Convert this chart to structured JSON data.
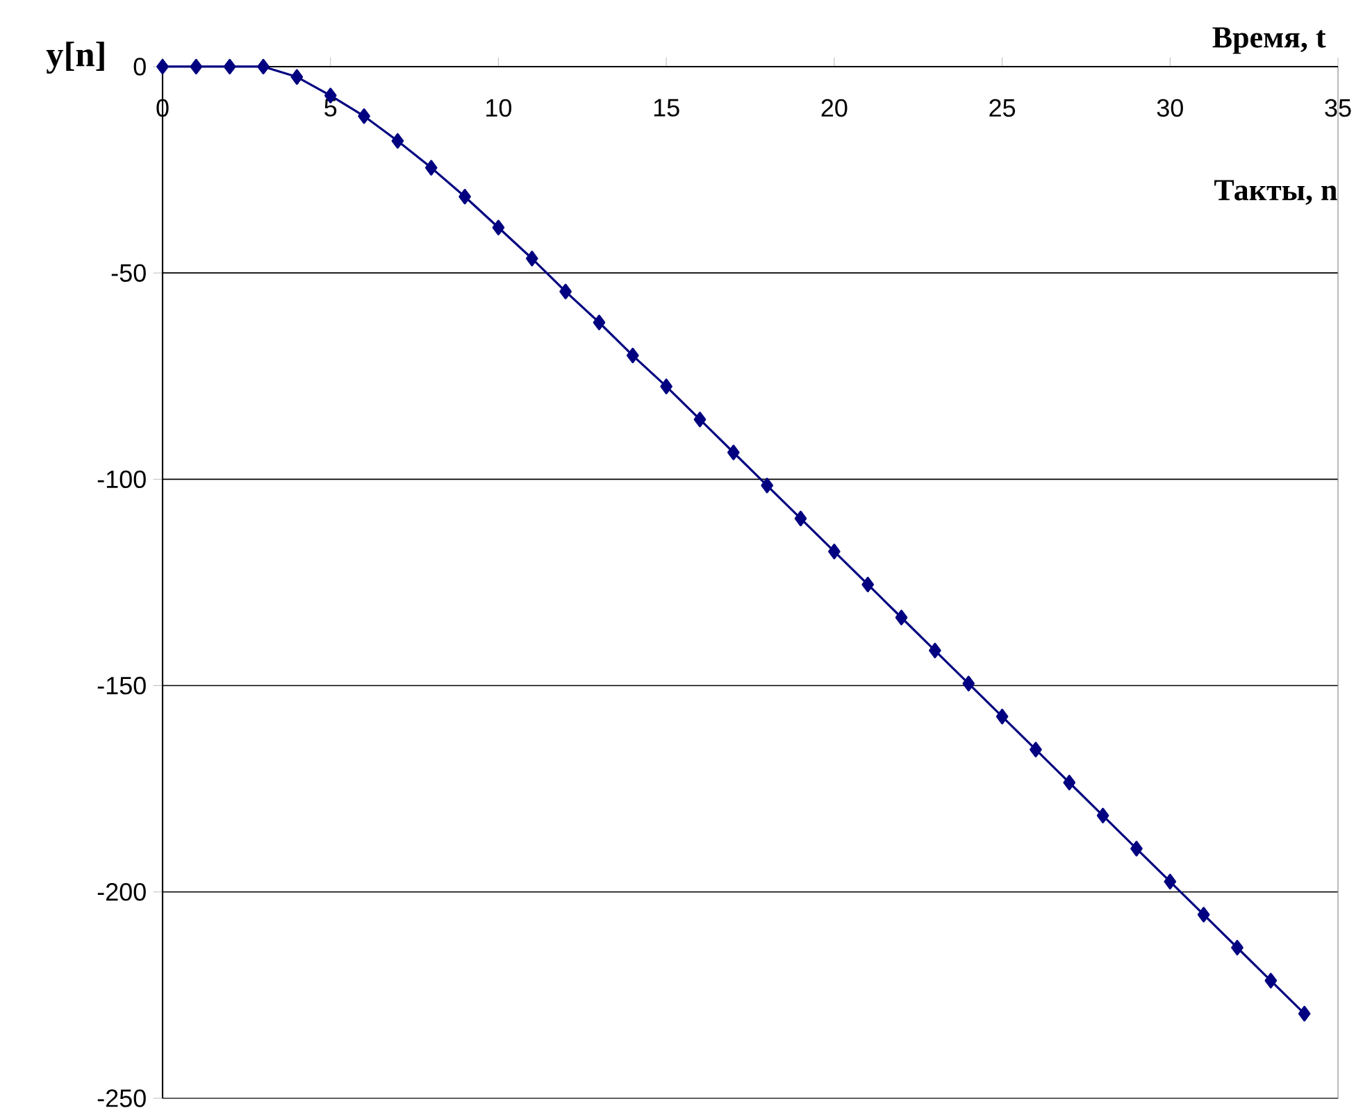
{
  "chart_data": {
    "type": "line",
    "xlabel": "Такты, n",
    "ylabel": "y[n]",
    "annotations": [
      "Время, t"
    ],
    "x": [
      0,
      1,
      2,
      3,
      4,
      5,
      6,
      7,
      8,
      9,
      10,
      11,
      12,
      13,
      14,
      15,
      16,
      17,
      18,
      19,
      20,
      21,
      22,
      23,
      24,
      25,
      26,
      27,
      28,
      29,
      30,
      31,
      32,
      33,
      34
    ],
    "series": [
      {
        "color": "#000080",
        "values": [
          0,
          0,
          0,
          0,
          -2.5,
          -7,
          -12,
          -18,
          -24.5,
          -31.5,
          -39,
          -46.5,
          -54.5,
          -62,
          -70,
          -77.5,
          -85.5,
          -93.5,
          -101.5,
          -109.5,
          -117.5,
          -125.5,
          -133.5,
          -141.5,
          -149.5,
          -157.5,
          -165.5,
          -173.5,
          -181.5,
          -189.5,
          -197.5,
          -205.5,
          -213.5,
          -221.5,
          -229.5
        ]
      }
    ],
    "xlim": [
      0,
      35
    ],
    "ylim": [
      -250,
      0
    ],
    "xticks": [
      0,
      5,
      10,
      15,
      20,
      25,
      30,
      35
    ],
    "yticks": [
      -250,
      -200,
      -150,
      -100,
      -50,
      0
    ],
    "grid": "y",
    "marker": "diamond",
    "line_style": "solid"
  }
}
